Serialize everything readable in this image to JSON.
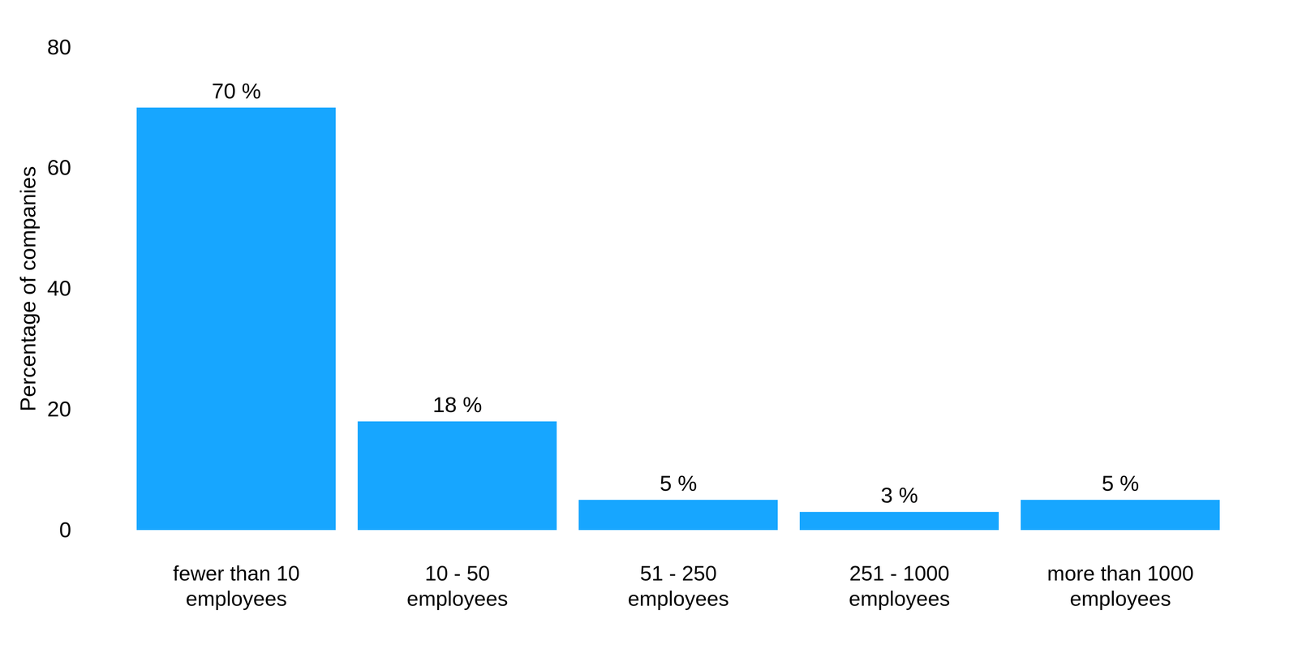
{
  "chart_data": {
    "type": "bar",
    "y_label": "Percentage of companies",
    "categories": [
      "fewer than 10\nemployees",
      "10 - 50\nemployees",
      "51 - 250\nemployees",
      "251 - 1000\nemployees",
      "more than 1000\nemployees"
    ],
    "values": [
      70,
      18,
      5,
      3,
      5
    ],
    "value_labels": [
      "70 %",
      "18 %",
      "5 %",
      "3 %",
      "5 %"
    ],
    "data_labels": true,
    "color": "#17a6ff",
    "ylim": [
      0,
      80
    ],
    "yticks": [
      0,
      20,
      40,
      60,
      80
    ],
    "grid": false
  }
}
